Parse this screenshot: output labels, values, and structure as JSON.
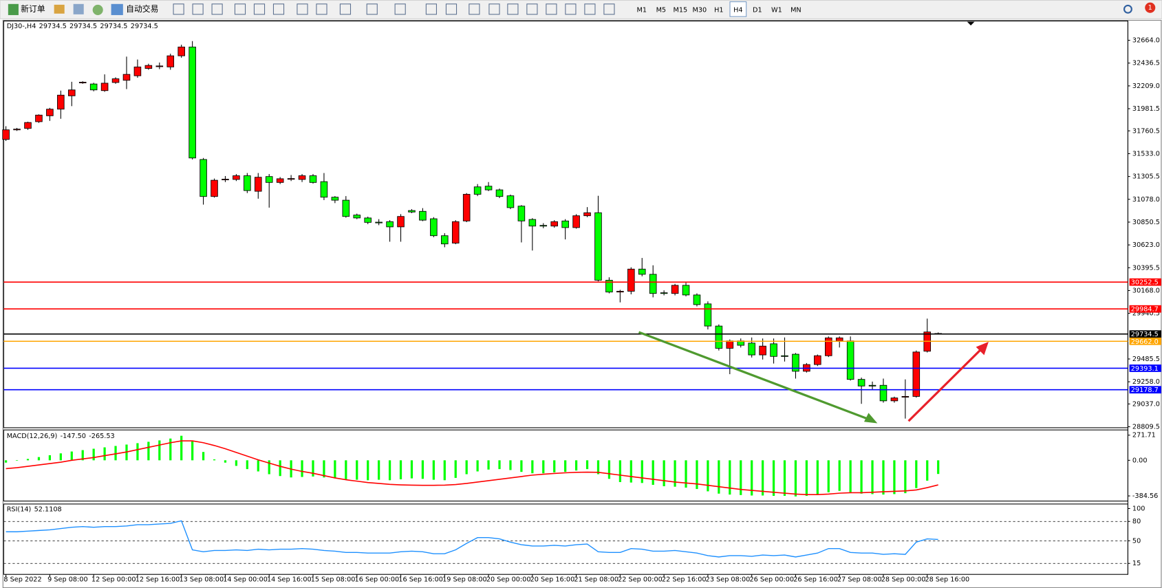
{
  "toolbar": {
    "new_order": "新订单",
    "auto_trading": "自动交易",
    "timeframes": [
      "M1",
      "M5",
      "M15",
      "M30",
      "H1",
      "H4",
      "D1",
      "W1",
      "MN"
    ],
    "active_timeframe": "H4",
    "notifications": 1
  },
  "chart_data": [
    {
      "type": "candlestick",
      "title": "DJ30-,H4",
      "quote": [
        29734.5,
        29734.5,
        29734.5,
        29734.5
      ],
      "categories": [
        "8 Sep 2022",
        null,
        null,
        null,
        "9 Sep 08:00",
        null,
        null,
        null,
        "12 Sep 00:00",
        null,
        null,
        null,
        "12 Sep 16:00",
        null,
        null,
        null,
        "13 Sep 08:00",
        null,
        null,
        null,
        "14 Sep 00:00",
        null,
        null,
        null,
        "14 Sep 16:00",
        null,
        null,
        null,
        "15 Sep 08:00",
        null,
        null,
        null,
        "16 Sep 00:00",
        null,
        null,
        null,
        "16 Sep 16:00",
        null,
        null,
        null,
        "19 Sep 08:00",
        null,
        null,
        null,
        "20 Sep 00:00",
        null,
        null,
        null,
        "20 Sep 16:00",
        null,
        null,
        null,
        "21 Sep 08:00",
        null,
        null,
        null,
        "22 Sep 00:00",
        null,
        null,
        null,
        "22 Sep 16:00",
        null,
        null,
        null,
        "23 Sep 08:00",
        null,
        null,
        null,
        "26 Sep 00:00",
        null,
        null,
        null,
        "26 Sep 16:00",
        null,
        null,
        null,
        "27 Sep 08:00",
        null,
        null,
        null,
        "28 Sep 00:00",
        null,
        null,
        null,
        "28 Sep 16:00",
        null
      ],
      "open": [
        31675,
        31771,
        31785,
        31852,
        31911,
        31977,
        32110,
        32240,
        32228,
        32162,
        32243,
        32265,
        32310,
        32383,
        32403,
        32398,
        32509,
        32597,
        31475,
        31106,
        31276,
        31276,
        31313,
        31158,
        31305,
        31246,
        31283,
        31276,
        31313,
        31254,
        31099,
        31069,
        30921,
        30892,
        30850,
        30855,
        30803,
        30966,
        30958,
        30884,
        30715,
        30641,
        30862,
        31202,
        31209,
        31172,
        31113,
        31010,
        30877,
        30818,
        30811,
        30862,
        30796,
        30914,
        30944,
        30271,
        30153,
        30161,
        30382,
        30330,
        30146,
        30139,
        30220,
        30124,
        30035,
        29814,
        29592,
        29666,
        29644,
        29526,
        29637,
        29518,
        29533,
        29363,
        29430,
        29518,
        29666,
        29666,
        29282,
        29223,
        29223,
        29068,
        29105,
        29112,
        29563,
        29740
      ],
      "high": [
        31807,
        31790,
        31852,
        31925,
        31990,
        32162,
        32250,
        32255,
        32240,
        32324,
        32295,
        32501,
        32472,
        32430,
        32442,
        32530,
        32620,
        32656,
        31490,
        31285,
        31310,
        31330,
        31340,
        31340,
        31330,
        31300,
        31320,
        31330,
        31330,
        31340,
        31110,
        31110,
        30935,
        30905,
        30880,
        30870,
        30930,
        30980,
        30990,
        30900,
        30740,
        30870,
        31140,
        31230,
        31250,
        31185,
        31125,
        31020,
        30890,
        30840,
        30870,
        30880,
        30930,
        31000,
        31113,
        30300,
        30175,
        30400,
        30493,
        30420,
        30170,
        30235,
        30250,
        30140,
        30060,
        29830,
        29680,
        29690,
        29700,
        29690,
        29690,
        29700,
        29545,
        29445,
        29530,
        29710,
        29710,
        29710,
        29300,
        29260,
        29290,
        29110,
        29282,
        29570,
        29888,
        29750
      ],
      "low": [
        31660,
        31760,
        31770,
        31840,
        31860,
        31881,
        32007,
        32230,
        32155,
        32150,
        32230,
        32177,
        32290,
        32370,
        32376,
        32370,
        32490,
        31475,
        31025,
        31095,
        31250,
        31260,
        31140,
        31084,
        30995,
        31230,
        31260,
        31250,
        31235,
        31070,
        31040,
        30895,
        30880,
        30830,
        30820,
        30655,
        30655,
        30940,
        30860,
        30700,
        30600,
        30630,
        30850,
        31110,
        31160,
        31090,
        30980,
        30648,
        30567,
        30790,
        30795,
        30678,
        30785,
        30900,
        30260,
        30140,
        30050,
        30130,
        30310,
        30100,
        30120,
        30120,
        30110,
        30010,
        29780,
        29570,
        29334,
        29600,
        29500,
        29480,
        29440,
        29460,
        29290,
        29350,
        29415,
        29505,
        29600,
        29270,
        29038,
        29180,
        29050,
        29050,
        28891,
        29100,
        29550,
        29730
      ],
      "close": [
        31771,
        31778,
        31844,
        31918,
        31977,
        32117,
        32169,
        32246,
        32169,
        32236,
        32280,
        32324,
        32398,
        32413,
        32408,
        32509,
        32597,
        31490,
        31106,
        31268,
        31279,
        31313,
        31165,
        31298,
        31246,
        31283,
        31285,
        31313,
        31246,
        31099,
        31069,
        30907,
        30892,
        30848,
        30848,
        30803,
        30907,
        30951,
        30870,
        30715,
        30633,
        30855,
        31128,
        31128,
        31172,
        31106,
        30995,
        30862,
        30811,
        30815,
        30855,
        30796,
        30914,
        30944,
        30271,
        30153,
        30161,
        30382,
        30330,
        30139,
        30144,
        30220,
        30124,
        30028,
        29814,
        29592,
        29666,
        29622,
        29526,
        29614,
        29511,
        29516,
        29363,
        29430,
        29518,
        29696,
        29696,
        29282,
        29216,
        29220,
        29068,
        29097,
        29112,
        29555,
        29755,
        29734.5
      ],
      "up_color": "#ff0000",
      "down_color": "#00ff00",
      "ylim": [
        28800,
        32856
      ],
      "yticks": [
        {
          "value": 32664,
          "label": "32664.0"
        },
        32436.5,
        {
          "value": 32209,
          "label": "32209.0"
        },
        31981.5,
        31760.5,
        {
          "value": 31533,
          "label": "31533.0"
        },
        31305.5,
        {
          "value": 31078,
          "label": "31078.0"
        },
        30850.5,
        {
          "value": 30623,
          "label": "30623.0"
        },
        30395.5,
        {
          "value": 30168,
          "label": "30168.0"
        },
        29940.5,
        29485.5,
        {
          "value": 29258,
          "label": "29258.0"
        },
        {
          "value": 29037,
          "label": "29037.0"
        },
        28809.5
      ],
      "levels": [
        {
          "value": 30252.5,
          "color": "#ff0000"
        },
        {
          "value": 29984.7,
          "color": "#ff0000"
        },
        {
          "value": 29734.5,
          "color": "#000000"
        },
        {
          "value": 29662,
          "label": "29662.0",
          "color": "#ffa500"
        },
        {
          "value": 29393.1,
          "color": "#0000ff"
        },
        {
          "value": 29178.7,
          "color": "#0000ff"
        }
      ]
    },
    {
      "type": "macd",
      "title": "MACD(12,26,9)",
      "readout": {
        "values": [
          -147.5,
          -265.53
        ],
        "value_labels": [
          "-147.50",
          "-265.53"
        ]
      },
      "histogram": {
        "color": "#00ff00",
        "values": [
          -25,
          -5,
          15,
          35,
          55,
          75,
          95,
          110,
          125,
          140,
          155,
          170,
          185,
          200,
          215,
          235,
          265,
          205,
          90,
          10,
          -25,
          -60,
          -95,
          -120,
          -150,
          -170,
          -185,
          -180,
          -175,
          -185,
          -195,
          -205,
          -210,
          -215,
          -210,
          -215,
          -205,
          -195,
          -200,
          -210,
          -215,
          -190,
          -150,
          -120,
          -100,
          -95,
          -105,
          -125,
          -140,
          -140,
          -130,
          -125,
          -110,
          -95,
          -150,
          -200,
          -235,
          -240,
          -245,
          -265,
          -280,
          -285,
          -295,
          -310,
          -335,
          -360,
          -370,
          -375,
          -380,
          -380,
          -384,
          -384,
          -390,
          -384,
          -370,
          -345,
          -330,
          -345,
          -360,
          -365,
          -370,
          -365,
          -355,
          -300,
          -220,
          -147.5
        ]
      },
      "signal": {
        "color": "#ff0000",
        "values": [
          -90,
          -80,
          -65,
          -50,
          -35,
          -20,
          0,
          15,
          30,
          50,
          70,
          90,
          115,
          140,
          165,
          190,
          210,
          210,
          190,
          160,
          125,
          85,
          45,
          5,
          -30,
          -65,
          -95,
          -120,
          -140,
          -165,
          -190,
          -210,
          -225,
          -240,
          -250,
          -260,
          -265,
          -268,
          -270,
          -270,
          -268,
          -262,
          -250,
          -235,
          -220,
          -205,
          -190,
          -175,
          -160,
          -150,
          -142,
          -135,
          -130,
          -128,
          -130,
          -145,
          -160,
          -175,
          -190,
          -205,
          -220,
          -235,
          -245,
          -255,
          -270,
          -285,
          -300,
          -315,
          -325,
          -335,
          -345,
          -355,
          -365,
          -370,
          -370,
          -365,
          -355,
          -350,
          -350,
          -345,
          -340,
          -335,
          -330,
          -320,
          -295,
          -265.53
        ]
      },
      "ylim": [
        -440,
        328
      ],
      "yticks": [
        271.71,
        {
          "value": 0,
          "label": "0.00"
        },
        -384.56
      ]
    },
    {
      "type": "line",
      "title": "RSI(14)",
      "readout": 52.1108,
      "color": "#1e90ff",
      "values": [
        64,
        64,
        65,
        66,
        67,
        69,
        71,
        72,
        71,
        72,
        72,
        73,
        75,
        75,
        76,
        77,
        81,
        36,
        33,
        35,
        35,
        36,
        35,
        37,
        36,
        37,
        37,
        38,
        37,
        35,
        34,
        32,
        32,
        31,
        31,
        31,
        33,
        34,
        33,
        30,
        30,
        36,
        46,
        55,
        55,
        53,
        48,
        44,
        42,
        42,
        43,
        42,
        44,
        45,
        33,
        32,
        32,
        38,
        37,
        34,
        34,
        35,
        33,
        31,
        27,
        25,
        27,
        27,
        26,
        28,
        27,
        28,
        25,
        28,
        31,
        38,
        38,
        32,
        31,
        31,
        29,
        30,
        29,
        48,
        53,
        52.1108
      ],
      "ylim": [
        -2,
        107
      ],
      "yticks": [
        100,
        80,
        50,
        15
      ],
      "levels": [
        80,
        50,
        15
      ]
    }
  ]
}
